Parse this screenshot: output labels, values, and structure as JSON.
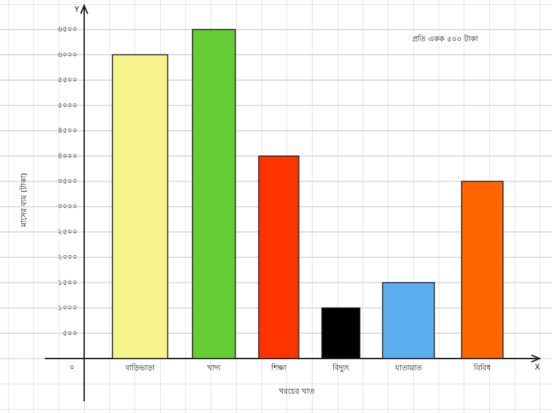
{
  "chart_data": {
    "type": "bar",
    "note": "প্রতি একক ৫০০ টাকা",
    "x_label": "খরচের খাত",
    "y_label": "মাসের ব্যয় (টাকা)",
    "x_axis_name": "X",
    "y_axis_name": "Y",
    "categories": [
      "বাড়িভাড়া",
      "খাদ্য",
      "শিক্ষা",
      "বিদ্যুৎ",
      "যাতায়াত",
      "বিবিধ"
    ],
    "values": [
      6000,
      6500,
      4000,
      1000,
      1500,
      3500
    ],
    "colors": [
      "#f7f48c",
      "#66cc33",
      "#ff3300",
      "#000000",
      "#5aaef0",
      "#ff6600"
    ],
    "ylim": [
      0,
      7000
    ],
    "yticks": [
      {
        "value": 0,
        "label": "০"
      },
      {
        "value": 500,
        "label": "৫০০"
      },
      {
        "value": 1000,
        "label": "১০০০"
      },
      {
        "value": 1500,
        "label": "১৫০০"
      },
      {
        "value": 2000,
        "label": "২০০০"
      },
      {
        "value": 2500,
        "label": "২৫০০"
      },
      {
        "value": 3000,
        "label": "৩০০০"
      },
      {
        "value": 3500,
        "label": "৩৫০০"
      },
      {
        "value": 4000,
        "label": "৪০০০"
      },
      {
        "value": 4500,
        "label": "৪৫০০"
      },
      {
        "value": 5000,
        "label": "৫০০০"
      },
      {
        "value": 5500,
        "label": "৫৫০০"
      },
      {
        "value": 6000,
        "label": "৬০০০"
      },
      {
        "value": 6500,
        "label": "৬৫০০"
      }
    ],
    "grid": true
  }
}
